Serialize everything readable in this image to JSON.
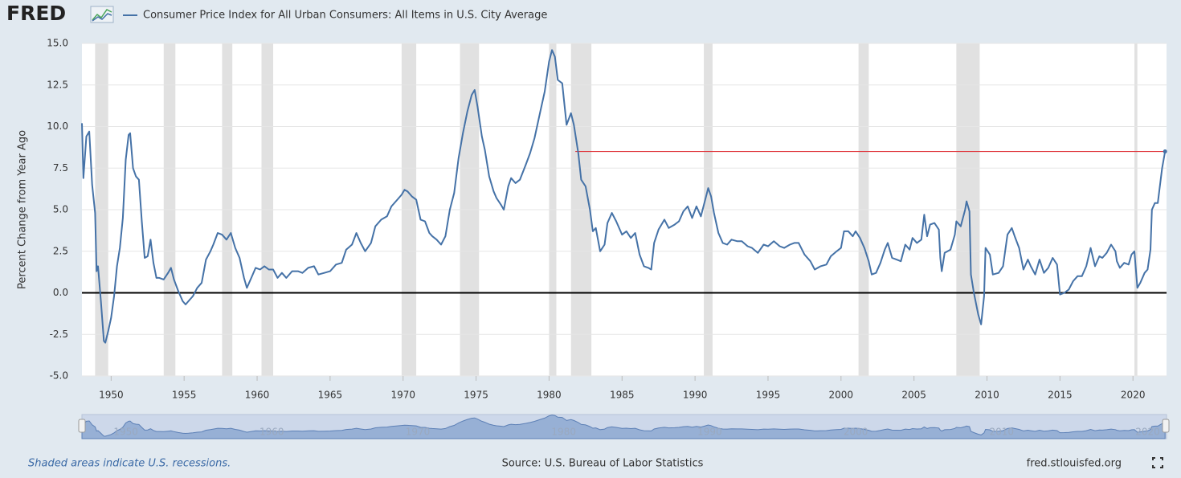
{
  "chart_data": {
    "type": "line",
    "logo": "FRED",
    "legend_label": "Consumer Price Index for All Urban Consumers: All Items in U.S. City Average",
    "y_label": "Percent Change from Year Ago",
    "note": "Shaded areas indicate U.S. recessions.",
    "source": "Source: U.S. Bureau of Labor Statistics",
    "site": "fred.stlouisfed.org",
    "color": "#4572a7",
    "xlim": [
      1948.0,
      2022.3
    ],
    "xticks": [
      1950,
      1955,
      1960,
      1965,
      1970,
      1975,
      1980,
      1985,
      1990,
      1995,
      2000,
      2005,
      2010,
      2015,
      2020
    ],
    "navigator_ticks": [
      1950,
      1960,
      1970,
      1980,
      1990,
      2000,
      2010,
      2020
    ],
    "ylim": [
      -5,
      15
    ],
    "yticks": [
      {
        "value": 15,
        "label": "15.0"
      },
      12.5,
      {
        "value": 10,
        "label": "10.0"
      },
      7.5,
      {
        "value": 5,
        "label": "5.0"
      },
      2.5,
      {
        "value": 0,
        "label": "0.0"
      },
      -2.5,
      {
        "value": -5,
        "label": "-5.0"
      }
    ],
    "grid": true,
    "zero_line": true,
    "recessions": [
      [
        1948.9,
        1949.8
      ],
      [
        1953.6,
        1954.4
      ],
      [
        1957.6,
        1958.3
      ],
      [
        1960.3,
        1961.1
      ],
      [
        1969.9,
        1970.9
      ],
      [
        1973.9,
        1975.2
      ],
      [
        1980.0,
        1980.5
      ],
      [
        1981.5,
        1982.9
      ],
      [
        1990.6,
        1991.2
      ],
      [
        2001.2,
        2001.9
      ],
      [
        2007.9,
        2009.5
      ],
      [
        2020.1,
        2020.3
      ]
    ],
    "reference_line": {
      "value": 8.5,
      "x_start": 1981.8,
      "x_end": 2022.2,
      "color": "#e0363c"
    },
    "x": [
      1948.0,
      1948.1,
      1948.3,
      1948.5,
      1948.7,
      1948.9,
      1949.0,
      1949.1,
      1949.3,
      1949.5,
      1949.6,
      1949.8,
      1950.0,
      1950.2,
      1950.4,
      1950.6,
      1950.8,
      1951.0,
      1951.2,
      1951.3,
      1951.5,
      1951.7,
      1951.9,
      1952.1,
      1952.3,
      1952.5,
      1952.7,
      1952.9,
      1953.1,
      1953.3,
      1953.6,
      1953.9,
      1954.1,
      1954.3,
      1954.6,
      1954.9,
      1955.1,
      1955.3,
      1955.6,
      1955.9,
      1956.2,
      1956.5,
      1956.8,
      1957.0,
      1957.3,
      1957.6,
      1957.9,
      1958.2,
      1958.5,
      1958.8,
      1959.1,
      1959.3,
      1959.6,
      1959.9,
      1960.2,
      1960.5,
      1960.8,
      1961.1,
      1961.4,
      1961.7,
      1962.0,
      1962.4,
      1962.8,
      1963.1,
      1963.5,
      1963.9,
      1964.2,
      1964.6,
      1965.0,
      1965.4,
      1965.8,
      1966.1,
      1966.5,
      1966.8,
      1967.1,
      1967.4,
      1967.8,
      1968.1,
      1968.5,
      1968.9,
      1969.2,
      1969.6,
      1969.9,
      1970.1,
      1970.3,
      1970.6,
      1970.9,
      1971.2,
      1971.5,
      1971.8,
      1972.0,
      1972.3,
      1972.6,
      1972.9,
      1973.2,
      1973.5,
      1973.8,
      1974.1,
      1974.4,
      1974.7,
      1974.9,
      1975.1,
      1975.4,
      1975.6,
      1975.9,
      1976.2,
      1976.4,
      1976.7,
      1976.9,
      1977.2,
      1977.4,
      1977.7,
      1978.0,
      1978.4,
      1978.7,
      1979.0,
      1979.4,
      1979.7,
      1980.0,
      1980.2,
      1980.4,
      1980.6,
      1980.9,
      1981.2,
      1981.5,
      1981.7,
      1982.0,
      1982.2,
      1982.5,
      1982.8,
      1983.0,
      1983.2,
      1983.5,
      1983.8,
      1984.0,
      1984.3,
      1984.6,
      1985.0,
      1985.3,
      1985.6,
      1985.9,
      1986.2,
      1986.5,
      1986.8,
      1987.0,
      1987.2,
      1987.5,
      1987.9,
      1988.2,
      1988.6,
      1988.9,
      1989.2,
      1989.5,
      1989.8,
      1990.1,
      1990.4,
      1990.7,
      1990.9,
      1991.1,
      1991.3,
      1991.6,
      1991.9,
      1992.2,
      1992.5,
      1992.9,
      1993.2,
      1993.6,
      1993.9,
      1994.3,
      1994.7,
      1995.0,
      1995.4,
      1995.8,
      1996.1,
      1996.5,
      1996.8,
      1997.1,
      1997.5,
      1997.9,
      1998.2,
      1998.6,
      1999.0,
      1999.3,
      1999.7,
      2000.0,
      2000.2,
      2000.5,
      2000.8,
      2001.0,
      2001.3,
      2001.6,
      2001.9,
      2002.1,
      2002.4,
      2002.7,
      2003.0,
      2003.2,
      2003.5,
      2003.8,
      2004.1,
      2004.4,
      2004.7,
      2004.9,
      2005.2,
      2005.5,
      2005.7,
      2005.9,
      2006.1,
      2006.4,
      2006.7,
      2006.8,
      2006.9,
      2007.1,
      2007.5,
      2007.8,
      2007.9,
      2008.2,
      2008.5,
      2008.6,
      2008.8,
      2008.9,
      2009.1,
      2009.4,
      2009.6,
      2009.8,
      2009.9,
      2010.2,
      2010.4,
      2010.8,
      2011.1,
      2011.4,
      2011.7,
      2011.9,
      2012.2,
      2012.5,
      2012.8,
      2013.0,
      2013.3,
      2013.6,
      2013.9,
      2014.2,
      2014.5,
      2014.8,
      2015.0,
      2015.3,
      2015.6,
      2015.9,
      2016.2,
      2016.5,
      2016.8,
      2017.1,
      2017.4,
      2017.7,
      2017.9,
      2018.2,
      2018.5,
      2018.8,
      2018.9,
      2019.1,
      2019.4,
      2019.7,
      2019.9,
      2020.1,
      2020.3,
      2020.5,
      2020.8,
      2021.0,
      2021.2,
      2021.3,
      2021.5,
      2021.7,
      2021.9,
      2022.0,
      2022.2
    ],
    "values": [
      10.2,
      6.9,
      9.4,
      9.7,
      6.5,
      4.8,
      1.3,
      1.6,
      -0.5,
      -2.9,
      -3.0,
      -2.3,
      -1.5,
      -0.2,
      1.6,
      2.7,
      4.5,
      8.0,
      9.5,
      9.6,
      7.5,
      7.0,
      6.8,
      4.3,
      2.1,
      2.2,
      3.2,
      1.8,
      0.9,
      0.9,
      0.8,
      1.2,
      1.5,
      0.8,
      0.1,
      -0.5,
      -0.7,
      -0.5,
      -0.2,
      0.3,
      0.6,
      2.0,
      2.5,
      2.9,
      3.6,
      3.5,
      3.2,
      3.6,
      2.7,
      2.1,
      0.9,
      0.3,
      0.9,
      1.5,
      1.4,
      1.6,
      1.4,
      1.4,
      0.9,
      1.2,
      0.9,
      1.3,
      1.3,
      1.2,
      1.5,
      1.6,
      1.1,
      1.2,
      1.3,
      1.7,
      1.8,
      2.6,
      2.9,
      3.6,
      3.0,
      2.5,
      3.0,
      4.0,
      4.4,
      4.6,
      5.2,
      5.6,
      5.9,
      6.2,
      6.1,
      5.8,
      5.6,
      4.4,
      4.3,
      3.6,
      3.4,
      3.2,
      2.9,
      3.4,
      5.0,
      6.0,
      8.1,
      9.6,
      10.9,
      11.9,
      12.2,
      11.2,
      9.4,
      8.6,
      7.0,
      6.1,
      5.7,
      5.3,
      5.0,
      6.4,
      6.9,
      6.6,
      6.8,
      7.7,
      8.4,
      9.3,
      10.9,
      12.1,
      13.9,
      14.6,
      14.2,
      12.8,
      12.6,
      10.1,
      10.8,
      10.1,
      8.4,
      6.8,
      6.4,
      5.0,
      3.7,
      3.9,
      2.5,
      2.9,
      4.2,
      4.8,
      4.3,
      3.5,
      3.7,
      3.3,
      3.6,
      2.3,
      1.6,
      1.5,
      1.4,
      3.0,
      3.8,
      4.4,
      3.9,
      4.1,
      4.3,
      4.9,
      5.2,
      4.5,
      5.2,
      4.6,
      5.6,
      6.3,
      5.8,
      4.8,
      3.6,
      3.0,
      2.9,
      3.2,
      3.1,
      3.1,
      2.8,
      2.7,
      2.4,
      2.9,
      2.8,
      3.1,
      2.8,
      2.7,
      2.9,
      3.0,
      3.0,
      2.3,
      1.9,
      1.4,
      1.6,
      1.7,
      2.2,
      2.5,
      2.7,
      3.7,
      3.7,
      3.4,
      3.7,
      3.3,
      2.7,
      1.9,
      1.1,
      1.2,
      1.8,
      2.6,
      3.0,
      2.1,
      2.0,
      1.9,
      2.9,
      2.6,
      3.3,
      3.0,
      3.2,
      4.7,
      3.4,
      4.1,
      4.2,
      3.8,
      2.1,
      1.3,
      2.4,
      2.6,
      3.5,
      4.3,
      4.0,
      5.0,
      5.5,
      4.9,
      1.1,
      0.0,
      -1.3,
      -1.9,
      -0.2,
      2.7,
      2.3,
      1.1,
      1.2,
      1.6,
      3.5,
      3.9,
      3.4,
      2.7,
      1.4,
      2.0,
      1.6,
      1.1,
      2.0,
      1.2,
      1.5,
      2.1,
      1.7,
      -0.1,
      0.0,
      0.2,
      0.7,
      1.0,
      1.0,
      1.6,
      2.7,
      1.6,
      2.2,
      2.1,
      2.4,
      2.9,
      2.5,
      1.9,
      1.5,
      1.8,
      1.7,
      2.3,
      2.5,
      0.3,
      0.6,
      1.2,
      1.4,
      2.6,
      5.0,
      5.4,
      5.4,
      6.8,
      7.5,
      8.5
    ]
  }
}
